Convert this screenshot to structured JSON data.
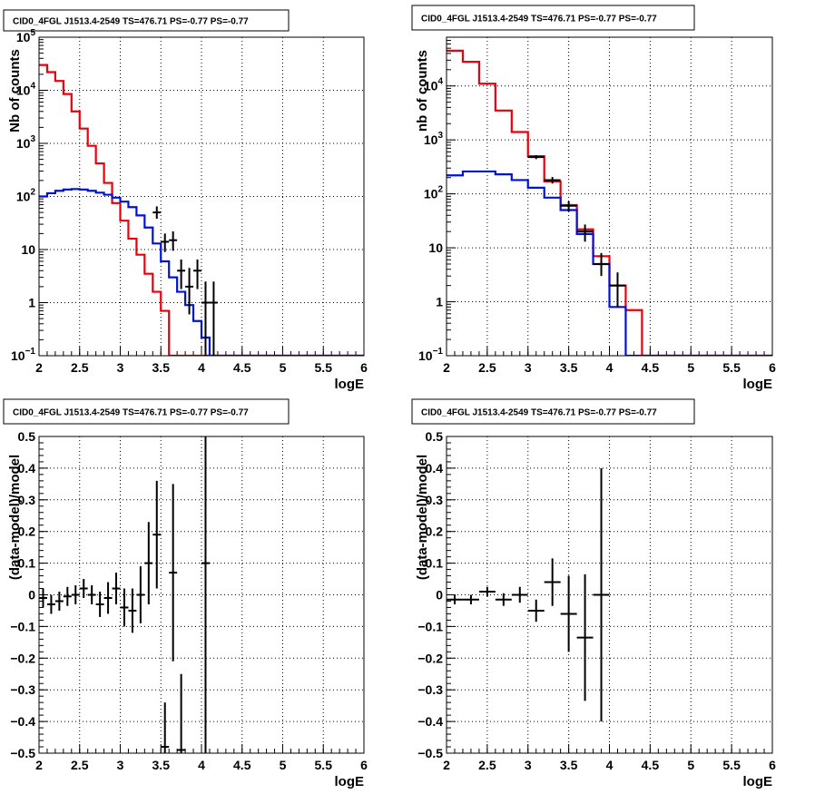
{
  "colors": {
    "data": "#000000",
    "total_model": "#e8000b",
    "component": "#0012d9",
    "grid": "#000000"
  },
  "chart_data": [
    {
      "type": "histogram",
      "title": "CID0_4FGL J1513.4-2549 TS=476.71 PS=-0.77 PS=-0.77",
      "xlabel": "logE",
      "ylabel": "Nb of counts",
      "xlim": [
        2,
        6
      ],
      "ylim": [
        0.1,
        100000
      ],
      "yscale": "log",
      "grid": true,
      "x_ticks": [
        "2",
        "2.5",
        "3",
        "3.5",
        "4",
        "4.5",
        "5",
        "5.5",
        "6"
      ],
      "y_ticks": [
        {
          "value": 0.1,
          "base": "10",
          "exp": "−1"
        },
        {
          "value": 1,
          "label": "1"
        },
        {
          "value": 10,
          "label": "10"
        },
        {
          "value": 100,
          "base": "10",
          "exp": "2"
        },
        {
          "value": 1000,
          "base": "10",
          "exp": "3"
        },
        {
          "value": 10000,
          "base": "10",
          "exp": "4"
        },
        {
          "value": 100000,
          "base": "10",
          "exp": "5"
        }
      ],
      "bin_width": 0.1,
      "series": [
        {
          "role": "total_model",
          "bin_start": 2.0,
          "values": [
            30000,
            22000,
            15000,
            8500,
            4000,
            1900,
            900,
            420,
            180,
            75,
            35,
            16,
            8,
            3.5,
            1.6,
            0.7,
            0.1,
            0.1,
            0.1,
            0.1,
            0.1,
            0.1,
            0.1,
            0.1,
            0.1,
            0.1,
            0.1,
            0.1,
            0.1,
            0.1,
            0.1,
            0.1,
            0.1,
            0.1,
            0.1,
            0.1,
            0.1,
            0.1,
            0.1,
            0.1
          ]
        },
        {
          "role": "component",
          "bin_start": 2.0,
          "values": [
            100,
            115,
            128,
            135,
            138,
            135,
            128,
            118,
            108,
            95,
            80,
            63,
            44,
            26,
            13,
            6,
            3,
            1.6,
            0.9,
            0.45,
            0.22,
            0.1,
            0.1,
            0.1,
            0.1,
            0.1,
            0.1,
            0.1,
            0.1,
            0.1,
            0.1,
            0.1,
            0.1,
            0.1,
            0.1,
            0.1,
            0.1,
            0.1,
            0.1,
            0.1
          ]
        },
        {
          "role": "data",
          "x": [
            3.45,
            3.55,
            3.65,
            3.75,
            3.85,
            3.95,
            4.05,
            4.15
          ],
          "y": [
            50,
            14,
            15,
            4,
            2,
            4,
            1,
            1
          ],
          "ylo": [
            38,
            9,
            9.5,
            1.8,
            0.6,
            1.8,
            0.1,
            0.1
          ],
          "yhi": [
            65,
            20,
            22,
            6.5,
            4.5,
            6.5,
            2.5,
            2.5
          ]
        }
      ]
    },
    {
      "type": "histogram",
      "title": "CID0_4FGL J1513.4-2549 TS=476.71 PS=-0.77 PS=-0.77",
      "xlabel": "logE",
      "ylabel": "nb of counts",
      "xlim": [
        2,
        6
      ],
      "ylim": [
        0.1,
        80000
      ],
      "yscale": "log",
      "grid": true,
      "x_ticks": [
        "2",
        "2.5",
        "3",
        "3.5",
        "4",
        "4.5",
        "5",
        "5.5",
        "6"
      ],
      "y_ticks": [
        {
          "value": 0.1,
          "base": "10",
          "exp": "−1"
        },
        {
          "value": 1,
          "label": "1"
        },
        {
          "value": 10,
          "label": "10"
        },
        {
          "value": 100,
          "base": "10",
          "exp": "2"
        },
        {
          "value": 1000,
          "base": "10",
          "exp": "3"
        },
        {
          "value": 10000,
          "base": "10",
          "exp": "4"
        }
      ],
      "bin_width": 0.2,
      "series": [
        {
          "role": "total_model",
          "bin_start": 2.0,
          "values": [
            45000,
            28000,
            11000,
            3500,
            1400,
            500,
            170,
            62,
            22,
            7,
            2,
            0.7,
            0.1,
            0.1,
            0.1,
            0.1,
            0.1,
            0.1,
            0.1,
            0.1
          ]
        },
        {
          "role": "component",
          "bin_start": 2.0,
          "values": [
            220,
            260,
            260,
            230,
            180,
            130,
            85,
            50,
            18,
            5,
            0.8,
            0.1,
            0.1,
            0.1,
            0.1,
            0.1,
            0.1,
            0.1,
            0.1,
            0.1
          ]
        },
        {
          "role": "data",
          "x": [
            3.1,
            3.3,
            3.5,
            3.7,
            3.9,
            4.1
          ],
          "y": [
            480,
            180,
            60,
            20,
            5,
            2
          ],
          "ylo": [
            440,
            155,
            47,
            13,
            3,
            0.8
          ],
          "yhi": [
            520,
            205,
            73,
            27,
            8,
            3.5
          ]
        }
      ]
    },
    {
      "type": "scatter",
      "title": "CID0_4FGL J1513.4-2549 TS=476.71 PS=-0.77 PS=-0.77",
      "xlabel": "logE",
      "ylabel": "(data-model)/model",
      "xlim": [
        2,
        6
      ],
      "ylim": [
        -0.5,
        0.5
      ],
      "grid": true,
      "x_ticks": [
        "2",
        "2.5",
        "3",
        "3.5",
        "4",
        "4.5",
        "5",
        "5.5",
        "6"
      ],
      "y_ticks": [
        "−0.5",
        "−0.4",
        "−0.3",
        "−0.2",
        "−0.1",
        "0",
        "0.1",
        "0.2",
        "0.3",
        "0.4",
        "0.5"
      ],
      "bin_width": 0.1,
      "points": [
        {
          "x": 2.05,
          "y": -0.01,
          "err": 0.03
        },
        {
          "x": 2.15,
          "y": -0.03,
          "err": 0.03
        },
        {
          "x": 2.25,
          "y": -0.02,
          "err": 0.03
        },
        {
          "x": 2.35,
          "y": -0.005,
          "err": 0.03
        },
        {
          "x": 2.45,
          "y": 0.0,
          "err": 0.03
        },
        {
          "x": 2.55,
          "y": 0.02,
          "err": 0.03
        },
        {
          "x": 2.65,
          "y": 0.0,
          "err": 0.03
        },
        {
          "x": 2.75,
          "y": -0.03,
          "err": 0.04
        },
        {
          "x": 2.85,
          "y": -0.01,
          "err": 0.05
        },
        {
          "x": 2.95,
          "y": 0.02,
          "err": 0.05
        },
        {
          "x": 3.05,
          "y": -0.04,
          "err": 0.06
        },
        {
          "x": 3.15,
          "y": -0.05,
          "err": 0.07
        },
        {
          "x": 3.25,
          "y": 0.0,
          "err": 0.09
        },
        {
          "x": 3.35,
          "y": 0.1,
          "err": 0.13
        },
        {
          "x": 3.45,
          "y": 0.19,
          "err": 0.17
        },
        {
          "x": 3.55,
          "y": -0.48,
          "err": 0.14
        },
        {
          "x": 3.65,
          "y": 0.07,
          "err": 0.28
        },
        {
          "x": 3.75,
          "y": -0.49,
          "err": 0.24
        },
        {
          "x": 4.05,
          "y": 0.1,
          "err": 0.6
        }
      ]
    },
    {
      "type": "scatter",
      "title": "CID0_4FGL J1513.4-2549 TS=476.71 PS=-0.77 PS=-0.77",
      "xlabel": "logE",
      "ylabel": "(data-model)/model",
      "xlim": [
        2,
        6
      ],
      "ylim": [
        -0.5,
        0.5
      ],
      "grid": true,
      "x_ticks": [
        "2",
        "2.5",
        "3",
        "3.5",
        "4",
        "4.5",
        "5",
        "5.5",
        "6"
      ],
      "y_ticks": [
        "−0.5",
        "−0.4",
        "−0.3",
        "−0.2",
        "−0.1",
        "0",
        "0.1",
        "0.2",
        "0.3",
        "0.4",
        "0.5"
      ],
      "bin_width": 0.2,
      "points": [
        {
          "x": 2.1,
          "y": -0.015,
          "err": 0.015
        },
        {
          "x": 2.3,
          "y": -0.015,
          "err": 0.015
        },
        {
          "x": 2.5,
          "y": 0.01,
          "err": 0.015
        },
        {
          "x": 2.7,
          "y": -0.015,
          "err": 0.02
        },
        {
          "x": 2.9,
          "y": 0.0,
          "err": 0.025
        },
        {
          "x": 3.1,
          "y": -0.05,
          "err": 0.035
        },
        {
          "x": 3.3,
          "y": 0.04,
          "err": 0.075
        },
        {
          "x": 3.5,
          "y": -0.06,
          "err": 0.12
        },
        {
          "x": 3.7,
          "y": -0.135,
          "err": 0.2
        },
        {
          "x": 3.9,
          "y": 0.0,
          "err": 0.4
        }
      ]
    }
  ]
}
